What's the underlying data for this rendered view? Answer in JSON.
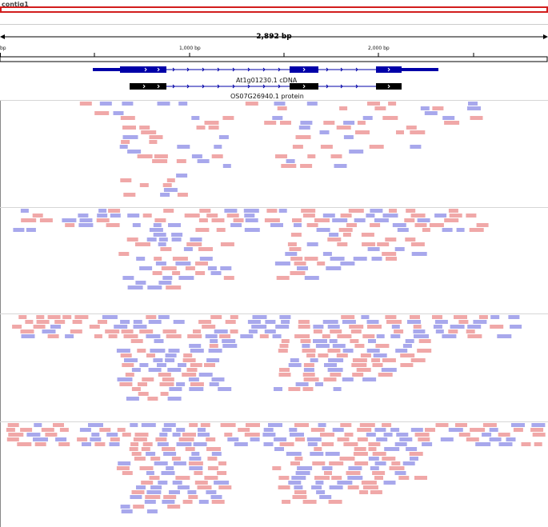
{
  "contig": "contig1",
  "ruler": {
    "span_label": "2,892 bp",
    "start_label": "bp",
    "ticks": [
      "1,000 bp",
      "2,000 bp"
    ]
  },
  "tracks": {
    "cdna_label": "At1g01230.1 cDNA",
    "protein_label": "OS07G26940.1 protein"
  },
  "colors": {
    "forward_read": "#f0a8a8",
    "reverse_read": "#a8a8ec",
    "cdna": "#0000a8",
    "protein": "#000000",
    "locus_box": "#d21d1d"
  },
  "panels": [
    {
      "name": "coverage-panel-1",
      "rows": 16
    },
    {
      "name": "coverage-panel-2",
      "rows": 14
    },
    {
      "name": "coverage-panel-3",
      "rows": 14
    },
    {
      "name": "coverage-panel-4",
      "rows": 15
    }
  ]
}
